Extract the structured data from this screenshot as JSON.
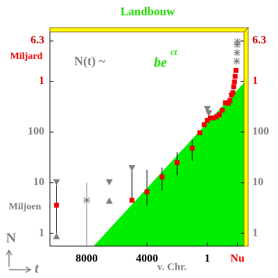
{
  "chart_data": {
    "type": "scatter",
    "title": "Landbouw",
    "title_color": "#22dd00",
    "y_label": "N",
    "x_label": "t",
    "annotations": [
      "N(t) ~",
      "be",
      "ct",
      "Miljard",
      "Miljoen",
      "v. Chr."
    ],
    "log_scale_y": true,
    "xlim": [
      -10437,
      2437
    ],
    "ylim": [
      0.56,
      9500
    ],
    "xticks": [
      {
        "value": -8000,
        "label": "8000"
      },
      {
        "value": -4000,
        "label": "4000"
      },
      1,
      {
        "value": 2000,
        "label": "Nu"
      }
    ],
    "xtick_colors": [
      "#000000",
      "#000000",
      "#000000",
      "#ee0000"
    ],
    "yticks": [
      1,
      10,
      100,
      {
        "value": 1000,
        "label": "1"
      },
      {
        "value": 6300,
        "label": "6.3"
      }
    ],
    "ytick_colors": [
      "#808080",
      "#808080",
      "#808080",
      "#ee0000",
      "#cc0000"
    ],
    "fit": {
      "color": "#00ee00",
      "x": [
        -7540,
        2437
      ],
      "values": [
        0.56,
        940
      ]
    },
    "series": [
      {
        "color": "#ee0000",
        "marker": "square",
        "x": [
          -10000,
          -5000,
          -4000,
          -3000,
          -2000,
          -1000,
          -500,
          -200,
          1,
          200,
          400,
          600,
          800,
          1000,
          1200,
          1400,
          1500,
          1600,
          1700,
          1750,
          1800,
          1850,
          1900
        ],
        "values": [
          3.6,
          4.5,
          6.6,
          13,
          25,
          48,
          97,
          140,
          170,
          190,
          190,
          200,
          220,
          270,
          380,
          370,
          420,
          540,
          600,
          780,
          980,
          1260,
          1650
        ],
        "low": [
          1,
          4.5,
          3.5,
          7,
          14,
          27,
          null,
          null,
          null,
          null,
          null,
          null,
          null,
          null,
          null,
          null,
          null,
          null,
          null,
          null,
          null,
          null,
          null
        ],
        "high": [
          10,
          19,
          18,
          20,
          40,
          70,
          null,
          null,
          null,
          null,
          null,
          null,
          null,
          null,
          null,
          null,
          null,
          null,
          null,
          null,
          null,
          null,
          null
        ]
      },
      {
        "color": "#808080",
        "marker": "triangle-down",
        "x": [
          -10000,
          -6500,
          -5000,
          1,
          100
        ],
        "values": [
          10,
          10,
          19,
          280,
          230
        ]
      },
      {
        "color": "#808080",
        "marker": "triangle-up",
        "x": [
          -10000,
          -6500
        ],
        "values": [
          0.9,
          4.5
        ]
      },
      {
        "color": "#808080",
        "marker": "asterisk",
        "x": [
          -8000
        ],
        "values": [
          4.5
        ],
        "low": [
          0.56
        ],
        "high": [
          10
        ]
      },
      {
        "color": "#808080",
        "marker": "asterisk",
        "x": [
          1950,
          1970,
          1990,
          2000
        ],
        "values": [
          2500,
          3700,
          5300,
          6100
        ]
      }
    ]
  }
}
